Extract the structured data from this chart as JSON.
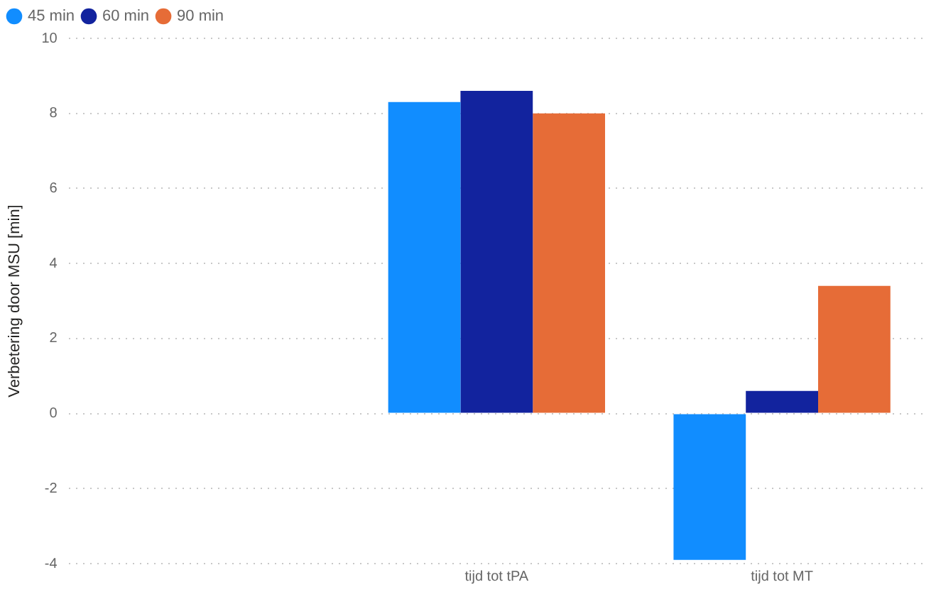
{
  "chart_data": {
    "type": "bar",
    "ylabel": "Verbetering door MSU [min]",
    "categories": [
      null,
      "tijd tot tPA",
      "tijd tot MT"
    ],
    "series": [
      {
        "name": "45 min",
        "color": "#118dff",
        "values": [
          null,
          8.3,
          -3.9
        ]
      },
      {
        "name": "60 min",
        "color": "#12239e",
        "values": [
          null,
          8.6,
          0.6
        ]
      },
      {
        "name": "90 min",
        "color": "#e66c37",
        "values": [
          null,
          8.0,
          3.4
        ]
      }
    ],
    "ylim": [
      -4,
      10
    ],
    "yticks": [
      -4,
      -2,
      0,
      2,
      4,
      6,
      8,
      10
    ],
    "grid": "y",
    "legend": "top left"
  }
}
